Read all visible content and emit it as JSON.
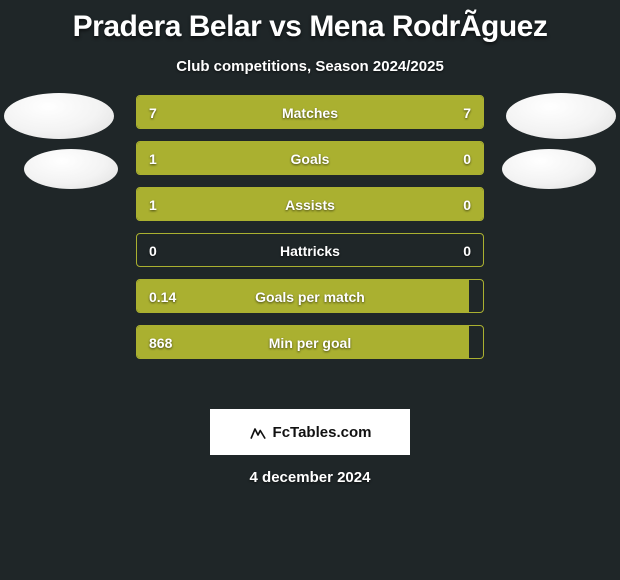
{
  "title": "Pradera Belar vs Mena RodrÃ­guez",
  "subtitle": "Club competitions, Season 2024/2025",
  "date": "4 december 2024",
  "watermark": "FcTables.com",
  "colors": {
    "background": "#1f2628",
    "bar_fill": "#aab030",
    "bar_border": "#aab030",
    "text": "#ffffff",
    "watermark_bg": "#ffffff",
    "watermark_text": "#111111",
    "avatar": "#f3f3f3"
  },
  "rows": [
    {
      "label": "Matches",
      "left": "7",
      "right": "7",
      "fill_left_pct": 50,
      "fill_right_pct": 50
    },
    {
      "label": "Goals",
      "left": "1",
      "right": "0",
      "fill_left_pct": 76,
      "fill_right_pct": 24
    },
    {
      "label": "Assists",
      "left": "1",
      "right": "0",
      "fill_left_pct": 76,
      "fill_right_pct": 24
    },
    {
      "label": "Hattricks",
      "left": "0",
      "right": "0",
      "fill_left_pct": 0,
      "fill_right_pct": 0
    },
    {
      "label": "Goals per match",
      "left": "0.14",
      "right": "",
      "fill_left_pct": 96,
      "fill_right_pct": 0
    },
    {
      "label": "Min per goal",
      "left": "868",
      "right": "",
      "fill_left_pct": 96,
      "fill_right_pct": 0
    }
  ]
}
